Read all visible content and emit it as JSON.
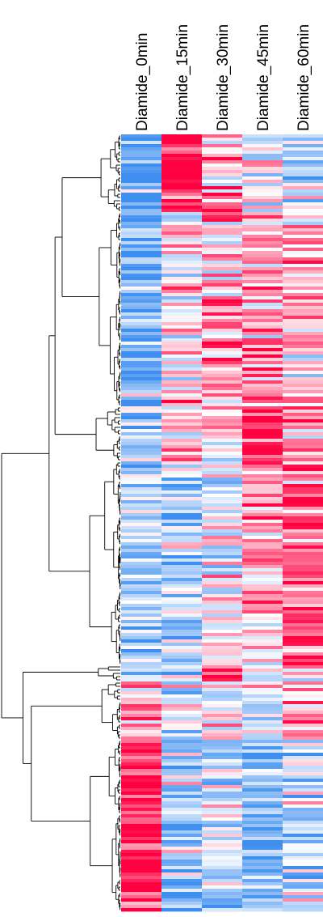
{
  "chart_data": {
    "type": "heatmap",
    "title": "",
    "xlabel": "",
    "ylabel": "",
    "columns": [
      "Diamide_0min",
      "Diamide_15min",
      "Diamide_30min",
      "Diamide_45min",
      "Diamide_60min"
    ],
    "row_axis": "genes (unlabeled), hierarchically clustered; dendrogram at left",
    "color_scale": {
      "low": "#3f8ff0",
      "mid": "#ffffff",
      "high": "#ff0040",
      "range": [
        -1,
        1
      ]
    },
    "grid": false,
    "legend": "none",
    "row_count": 240,
    "clusters": [
      {
        "id": "A",
        "rows": 24,
        "profile": [
          -0.85,
          0.95,
          0.35,
          -0.2,
          -0.25
        ]
      },
      {
        "id": "B",
        "rows": 60,
        "profile": [
          -0.7,
          0.15,
          0.35,
          0.45,
          0.2
        ]
      },
      {
        "id": "C",
        "rows": 17,
        "profile": [
          -0.55,
          0.25,
          0.1,
          0.9,
          0.3
        ]
      },
      {
        "id": "D",
        "rows": 63,
        "profile": [
          -0.4,
          -0.35,
          -0.05,
          0.25,
          0.7
        ]
      },
      {
        "id": "E",
        "rows": 5,
        "profile": [
          -0.35,
          -0.2,
          0.85,
          -0.3,
          0.15
        ]
      },
      {
        "id": "F",
        "rows": 18,
        "profile": [
          0.35,
          -0.25,
          -0.1,
          -0.15,
          0.3
        ]
      },
      {
        "id": "G",
        "rows": 53,
        "profile": [
          0.95,
          -0.45,
          -0.35,
          -0.45,
          -0.3
        ]
      }
    ]
  }
}
